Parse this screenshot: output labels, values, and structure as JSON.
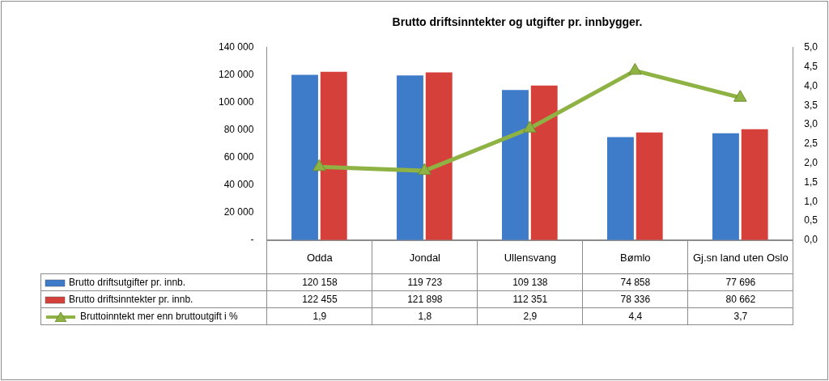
{
  "chart_data": {
    "type": "bar",
    "title": "Brutto driftsinntekter og utgifter pr. innbygger.",
    "categories": [
      "Odda",
      "Jondal",
      "Ullensvang",
      "Bømlo",
      "Gj.sn land uten Oslo"
    ],
    "series": [
      {
        "name": "Brutto driftsutgifter pr. innb.",
        "color": "#3e7bc8",
        "values": [
          120158,
          119723,
          109138,
          74858,
          77696
        ],
        "value_labels": [
          "120 158",
          "119 723",
          "109 138",
          "74 858",
          "77 696"
        ]
      },
      {
        "name": "Brutto driftsinntekter pr. innb.",
        "color": "#d6403a",
        "values": [
          122455,
          121898,
          112351,
          78336,
          80662
        ],
        "value_labels": [
          "122 455",
          "121 898",
          "112 351",
          "78 336",
          "80 662"
        ]
      },
      {
        "name": "Bruttoinntekt mer enn bruttoutgift i %",
        "color": "#8fb244",
        "type": "line",
        "marker": "triangle",
        "axis": "y2",
        "values": [
          1.9,
          1.8,
          2.9,
          4.4,
          3.7
        ],
        "value_labels": [
          "1,9",
          "1,8",
          "2,9",
          "4,4",
          "3,7"
        ]
      }
    ],
    "ylim": [
      0,
      140000
    ],
    "yticks": [
      {
        "value": 0,
        "label": "-"
      },
      {
        "value": 20000,
        "label": "20 000"
      },
      {
        "value": 40000,
        "label": "40 000"
      },
      {
        "value": 60000,
        "label": "60 000"
      },
      {
        "value": 80000,
        "label": "80 000"
      },
      {
        "value": 100000,
        "label": "100 000"
      },
      {
        "value": 120000,
        "label": "120 000"
      },
      {
        "value": 140000,
        "label": "140 000"
      }
    ],
    "y2lim": [
      0,
      5
    ],
    "y2ticks": [
      {
        "value": 0,
        "label": "0,0"
      },
      {
        "value": 0.5,
        "label": "0,5"
      },
      {
        "value": 1,
        "label": "1,0"
      },
      {
        "value": 1.5,
        "label": "1,5"
      },
      {
        "value": 2,
        "label": "2,0"
      },
      {
        "value": 2.5,
        "label": "2,5"
      },
      {
        "value": 3,
        "label": "3,0"
      },
      {
        "value": 3.5,
        "label": "3,5"
      },
      {
        "value": 4,
        "label": "4,0"
      },
      {
        "value": 4.5,
        "label": "4,5"
      },
      {
        "value": 5,
        "label": "5,0"
      }
    ],
    "grid": false
  }
}
